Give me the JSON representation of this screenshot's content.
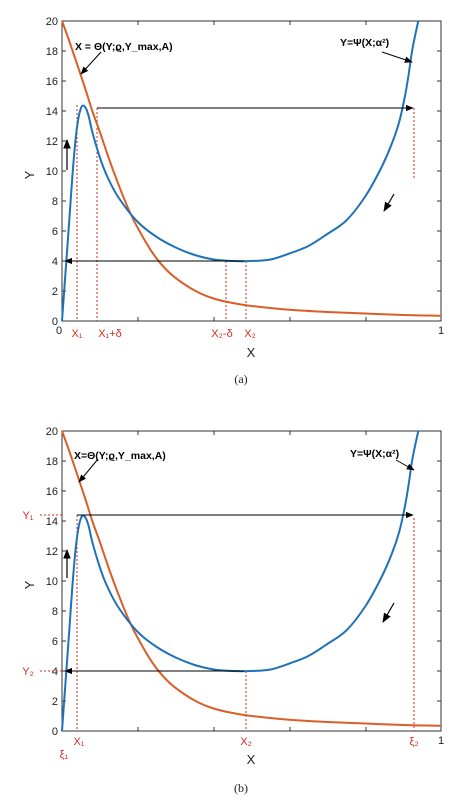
{
  "chart_data": [
    {
      "type": "line",
      "caption": "(a)",
      "xlabel": "X",
      "ylabel": "Y",
      "xlim": [
        0,
        1
      ],
      "ylim": [
        0,
        20
      ],
      "yticks": [
        "0",
        "2",
        "4",
        "6",
        "8",
        "10",
        "12",
        "14",
        "16",
        "18",
        "20"
      ],
      "xtick_labels": [
        "0",
        "1"
      ],
      "grid": false,
      "series": [
        {
          "name": "X = Θ(Y;ϱ,Y_max,A)",
          "color": "#d95f27",
          "x": [
            0.0,
            0.02,
            0.04,
            0.06,
            0.08,
            0.1,
            0.12,
            0.14,
            0.16,
            0.18,
            0.2,
            0.24,
            0.28,
            0.32,
            0.36,
            0.4,
            0.45,
            0.5,
            0.6,
            0.7,
            0.8,
            0.9,
            1.0
          ],
          "y": [
            20.0,
            18.6,
            17.1,
            15.6,
            14.0,
            12.6,
            11.1,
            9.7,
            8.4,
            7.2,
            6.2,
            4.5,
            3.3,
            2.5,
            1.9,
            1.5,
            1.2,
            1.0,
            0.75,
            0.6,
            0.5,
            0.4,
            0.35
          ]
        },
        {
          "name": "Y = Ψ(X;α²)",
          "color": "#1f72b8",
          "x": [
            0.0,
            0.01,
            0.02,
            0.03,
            0.04,
            0.05,
            0.06,
            0.07,
            0.08,
            0.1,
            0.12,
            0.15,
            0.2,
            0.25,
            0.3,
            0.35,
            0.4,
            0.45,
            0.5,
            0.55,
            0.6,
            0.65,
            0.7,
            0.75,
            0.8,
            0.84,
            0.87,
            0.89,
            0.905,
            0.915,
            0.925,
            0.94
          ],
          "y": [
            0.0,
            3.5,
            7.0,
            10.5,
            13.0,
            14.2,
            14.3,
            13.7,
            12.6,
            10.9,
            9.6,
            8.2,
            6.6,
            5.6,
            4.9,
            4.4,
            4.1,
            4.0,
            4.0,
            4.1,
            4.5,
            5.0,
            5.8,
            6.7,
            8.3,
            10.1,
            11.8,
            13.3,
            15.0,
            16.5,
            18.2,
            20.0
          ]
        }
      ],
      "annotations": {
        "theta_label": "X = Θ(Y;ϱ,Y_max,A)",
        "psi_label": "Y=Ψ(X;α²)",
        "x1": "X₁",
        "x1d": "X₁+δ",
        "x2d": "X₂-δ",
        "x2": "X₂"
      }
    },
    {
      "type": "line",
      "caption": "(b)",
      "xlabel": "X",
      "ylabel": "Y",
      "xlim": [
        0,
        1
      ],
      "ylim": [
        0,
        20
      ],
      "yticks": [
        "0",
        "2",
        "4",
        "6",
        "8",
        "10",
        "12",
        "14",
        "16",
        "18",
        "20"
      ],
      "xtick_labels": [
        "1"
      ],
      "grid": false,
      "series": [
        {
          "name": "X=Θ(Y;ϱ,Y_max,A)",
          "color": "#d95f27",
          "x": [
            0.0,
            0.02,
            0.04,
            0.06,
            0.08,
            0.1,
            0.12,
            0.14,
            0.16,
            0.18,
            0.2,
            0.24,
            0.28,
            0.32,
            0.36,
            0.4,
            0.45,
            0.5,
            0.6,
            0.7,
            0.8,
            0.9,
            1.0
          ],
          "y": [
            20.0,
            18.6,
            17.1,
            15.6,
            14.0,
            12.6,
            11.1,
            9.7,
            8.4,
            7.2,
            6.2,
            4.5,
            3.3,
            2.5,
            1.9,
            1.5,
            1.2,
            1.0,
            0.75,
            0.6,
            0.5,
            0.4,
            0.35
          ]
        },
        {
          "name": "Y=Ψ(X;α²)",
          "color": "#1f72b8",
          "x": [
            0.0,
            0.01,
            0.02,
            0.03,
            0.04,
            0.05,
            0.06,
            0.07,
            0.08,
            0.1,
            0.12,
            0.15,
            0.2,
            0.25,
            0.3,
            0.35,
            0.4,
            0.45,
            0.5,
            0.55,
            0.6,
            0.65,
            0.7,
            0.75,
            0.8,
            0.84,
            0.87,
            0.89,
            0.905,
            0.915,
            0.925,
            0.94
          ],
          "y": [
            0.0,
            3.5,
            7.0,
            10.5,
            13.0,
            14.2,
            14.3,
            13.7,
            12.6,
            10.9,
            9.6,
            8.2,
            6.6,
            5.6,
            4.9,
            4.4,
            4.1,
            4.0,
            4.0,
            4.1,
            4.5,
            5.0,
            5.8,
            6.7,
            8.3,
            10.1,
            11.8,
            13.3,
            15.0,
            16.5,
            18.2,
            20.0
          ]
        }
      ],
      "annotations": {
        "theta_label": "X=Θ(Y;ϱ,Y_max,A)",
        "psi_label": "Y=Ψ(X;α²)",
        "x1": "X₁",
        "x2": "X₂",
        "xi1": "ξ₁",
        "xi2": "ξ₂",
        "y1": "Y₁",
        "y2": "Y₂"
      }
    }
  ],
  "colors": {
    "theta": "#d95f27",
    "psi": "#1f72b8",
    "marker": "#d62a1e"
  }
}
